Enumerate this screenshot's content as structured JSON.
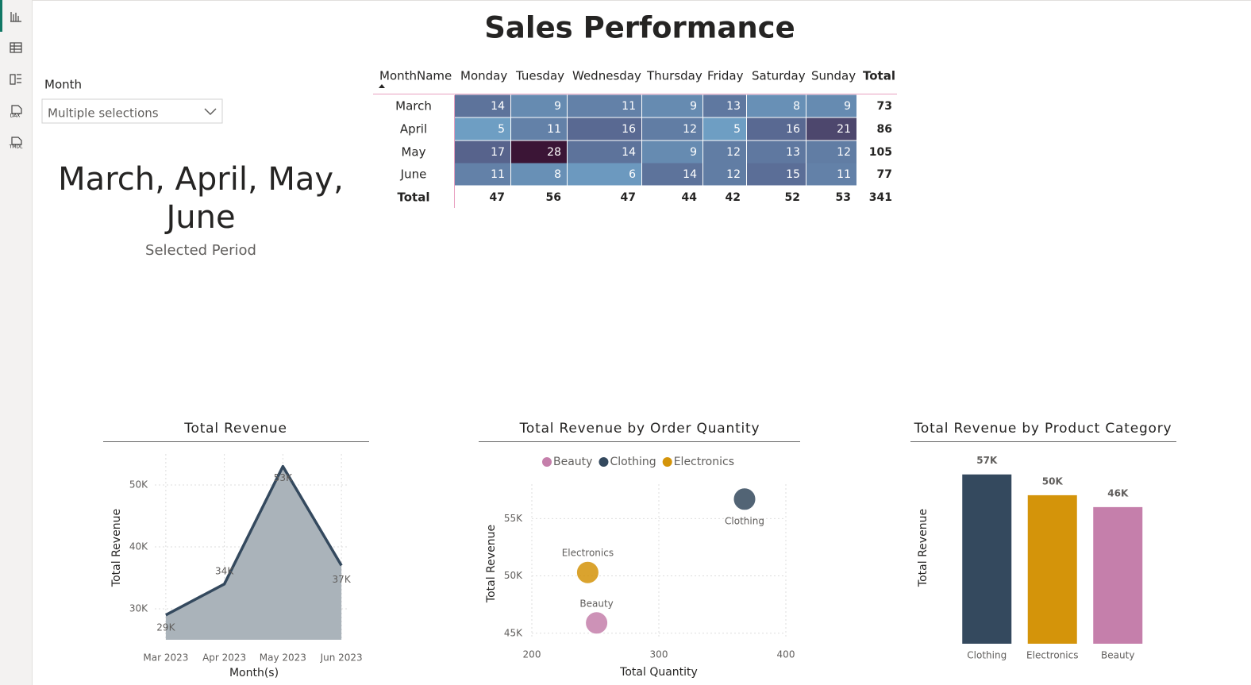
{
  "title": "Sales Performance",
  "sidebar": {
    "icons": [
      "DAX",
      "TMDL"
    ]
  },
  "slicer": {
    "label": "Month",
    "value": "Multiple selections"
  },
  "card": {
    "value": "March, April, May, June",
    "lines": [
      "March, April, May,",
      "June"
    ],
    "caption": "Selected Period"
  },
  "matrix": {
    "columns": [
      "MonthName",
      "Monday",
      "Tuesday",
      "Wednesday",
      "Thursday",
      "Friday",
      "Saturday",
      "Sunday",
      "Total"
    ],
    "rows": [
      {
        "label": "March",
        "values": [
          14,
          9,
          11,
          9,
          13,
          8,
          9
        ],
        "total": 73
      },
      {
        "label": "April",
        "values": [
          5,
          11,
          16,
          12,
          5,
          16,
          21
        ],
        "total": 86
      },
      {
        "label": "May",
        "values": [
          17,
          28,
          14,
          9,
          12,
          13,
          12
        ],
        "total": 105
      },
      {
        "label": "June",
        "values": [
          11,
          8,
          6,
          14,
          12,
          15,
          11
        ],
        "total": 77
      }
    ],
    "totals": {
      "label": "Total",
      "values": [
        47,
        56,
        47,
        44,
        42,
        52,
        53
      ],
      "total": 341
    },
    "heat_colors": [
      "#6e9ec3",
      "#586790",
      "#3b1536"
    ]
  },
  "chart_data": [
    {
      "type": "area",
      "title": "Total Revenue",
      "x_label": "Month(s)",
      "y_label": "Total Revenue",
      "categories": [
        "Mar 2023",
        "Apr 2023",
        "May 2023",
        "Jun 2023"
      ],
      "values": [
        29000,
        34000,
        53000,
        37000
      ],
      "value_labels": [
        "29K",
        "34K",
        "53K",
        "37K"
      ],
      "color": "#34495e",
      "fill": "#aab3ba",
      "ylim": [
        25000,
        55000
      ],
      "yticks": [
        {
          "value": 30000,
          "label": "30K"
        },
        {
          "value": 40000,
          "label": "40K"
        },
        {
          "value": 50000,
          "label": "50K"
        }
      ],
      "grid": true
    },
    {
      "type": "scatter",
      "title": "Total Revenue by Order Quantity",
      "x_label": "Total Quantity",
      "y_label": "Total Revenue",
      "series": [
        {
          "name": "Beauty",
          "color": "#c57fab",
          "x": [
            251
          ],
          "values": [
            45900
          ]
        },
        {
          "name": "Clothing",
          "color": "#34495e",
          "x": [
            367.5
          ],
          "values": [
            56700
          ]
        },
        {
          "name": "Electronics",
          "color": "#d4940a",
          "x": [
            244
          ],
          "values": [
            50300
          ]
        }
      ],
      "xlim": [
        200,
        400
      ],
      "xticks": [
        200,
        300,
        400
      ],
      "ylim": [
        44500,
        58000
      ],
      "yticks": [
        {
          "value": 45000,
          "label": "45K"
        },
        {
          "value": 50000,
          "label": "50K"
        },
        {
          "value": 55000,
          "label": "55K"
        }
      ],
      "grid": true,
      "legend": "top"
    },
    {
      "type": "bar",
      "title": "Total Revenue by Product Category",
      "y_label": "Total Revenue",
      "categories": [
        "Clothing",
        "Electronics",
        "Beauty"
      ],
      "values": [
        57000,
        50000,
        46000
      ],
      "value_labels": [
        "57K",
        "50K",
        "46K"
      ],
      "colors": [
        "#34495e",
        "#d4940a",
        "#c57fab"
      ],
      "ylim": [
        0,
        62000
      ],
      "grid": false
    }
  ]
}
